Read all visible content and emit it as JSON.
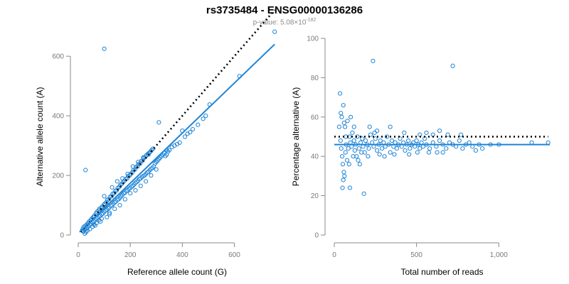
{
  "header": {
    "title": "rs3735484 - ENSG00000136286",
    "pvalue_prefix": "p-value: 5.08×10",
    "pvalue_exponent": "-182"
  },
  "colors": {
    "points": "#1f84d6",
    "fit_line": "#1f84d6",
    "reference_line": "#000000",
    "axis": "#8a8a8a"
  },
  "chart_data": [
    {
      "type": "scatter",
      "title": "",
      "xlabel": "Reference allele count (G)",
      "ylabel": "Alternative allele count (A)",
      "xlim": [
        0,
        760
      ],
      "ylim": [
        0,
        660
      ],
      "xticks": [
        0,
        200,
        400,
        600
      ],
      "xtick_labels": [
        "0",
        "200",
        "400",
        "600"
      ],
      "yticks": [
        0,
        200,
        400,
        600
      ],
      "ytick_labels": [
        "0",
        "200",
        "400",
        "600"
      ],
      "grid": false,
      "lines": [
        {
          "style": "dotted",
          "color": "#000000",
          "x": [
            10,
            755
          ],
          "y": [
            10,
            755
          ]
        },
        {
          "style": "solid",
          "color": "#1f84d6",
          "x": [
            5,
            755
          ],
          "y": [
            10,
            640
          ]
        }
      ],
      "points": [
        [
          100,
          625
        ],
        [
          28,
          218
        ],
        [
          755,
          682
        ],
        [
          620,
          533
        ],
        [
          310,
          378
        ],
        [
          505,
          438
        ],
        [
          400,
          350
        ],
        [
          340,
          285
        ],
        [
          15,
          15
        ],
        [
          18,
          22
        ],
        [
          20,
          12
        ],
        [
          22,
          28
        ],
        [
          25,
          18
        ],
        [
          28,
          30
        ],
        [
          30,
          22
        ],
        [
          32,
          35
        ],
        [
          35,
          25
        ],
        [
          38,
          40
        ],
        [
          40,
          30
        ],
        [
          42,
          45
        ],
        [
          45,
          35
        ],
        [
          48,
          50
        ],
        [
          50,
          38
        ],
        [
          52,
          55
        ],
        [
          55,
          42
        ],
        [
          58,
          60
        ],
        [
          60,
          45
        ],
        [
          62,
          65
        ],
        [
          65,
          50
        ],
        [
          68,
          72
        ],
        [
          70,
          55
        ],
        [
          72,
          78
        ],
        [
          75,
          58
        ],
        [
          78,
          82
        ],
        [
          80,
          62
        ],
        [
          82,
          88
        ],
        [
          85,
          65
        ],
        [
          88,
          90
        ],
        [
          90,
          70
        ],
        [
          92,
          95
        ],
        [
          95,
          72
        ],
        [
          98,
          100
        ],
        [
          100,
          78
        ],
        [
          102,
          105
        ],
        [
          105,
          82
        ],
        [
          108,
          110
        ],
        [
          110,
          85
        ],
        [
          112,
          118
        ],
        [
          115,
          90
        ],
        [
          118,
          120
        ],
        [
          120,
          92
        ],
        [
          122,
          128
        ],
        [
          125,
          98
        ],
        [
          128,
          130
        ],
        [
          130,
          100
        ],
        [
          132,
          138
        ],
        [
          135,
          105
        ],
        [
          138,
          140
        ],
        [
          140,
          110
        ],
        [
          142,
          148
        ],
        [
          145,
          112
        ],
        [
          148,
          150
        ],
        [
          150,
          118
        ],
        [
          152,
          158
        ],
        [
          155,
          120
        ],
        [
          158,
          162
        ],
        [
          160,
          125
        ],
        [
          162,
          168
        ],
        [
          165,
          130
        ],
        [
          168,
          172
        ],
        [
          170,
          135
        ],
        [
          172,
          178
        ],
        [
          175,
          140
        ],
        [
          178,
          182
        ],
        [
          180,
          142
        ],
        [
          182,
          188
        ],
        [
          185,
          148
        ],
        [
          188,
          190
        ],
        [
          190,
          150
        ],
        [
          192,
          198
        ],
        [
          195,
          155
        ],
        [
          198,
          200
        ],
        [
          200,
          158
        ],
        [
          202,
          205
        ],
        [
          205,
          162
        ],
        [
          208,
          210
        ],
        [
          210,
          165
        ],
        [
          212,
          218
        ],
        [
          215,
          170
        ],
        [
          218,
          220
        ],
        [
          220,
          175
        ],
        [
          222,
          228
        ],
        [
          225,
          178
        ],
        [
          228,
          230
        ],
        [
          230,
          182
        ],
        [
          232,
          238
        ],
        [
          235,
          188
        ],
        [
          238,
          240
        ],
        [
          240,
          190
        ],
        [
          242,
          248
        ],
        [
          245,
          195
        ],
        [
          248,
          250
        ],
        [
          250,
          198
        ],
        [
          252,
          258
        ],
        [
          255,
          200
        ],
        [
          258,
          262
        ],
        [
          260,
          205
        ],
        [
          262,
          268
        ],
        [
          265,
          210
        ],
        [
          268,
          272
        ],
        [
          270,
          212
        ],
        [
          272,
          275
        ],
        [
          275,
          218
        ],
        [
          278,
          280
        ],
        [
          280,
          222
        ],
        [
          282,
          285
        ],
        [
          285,
          225
        ],
        [
          288,
          290
        ],
        [
          290,
          230
        ],
        [
          295,
          240
        ],
        [
          300,
          245
        ],
        [
          305,
          250
        ],
        [
          310,
          255
        ],
        [
          315,
          260
        ],
        [
          320,
          265
        ],
        [
          325,
          270
        ],
        [
          330,
          275
        ],
        [
          335,
          265
        ],
        [
          340,
          270
        ],
        [
          345,
          280
        ],
        [
          350,
          285
        ],
        [
          360,
          295
        ],
        [
          370,
          300
        ],
        [
          380,
          305
        ],
        [
          390,
          310
        ],
        [
          410,
          330
        ],
        [
          420,
          340
        ],
        [
          430,
          345
        ],
        [
          440,
          355
        ],
        [
          460,
          370
        ],
        [
          480,
          390
        ],
        [
          490,
          400
        ],
        [
          60,
          35
        ],
        [
          80,
          50
        ],
        [
          90,
          55
        ],
        [
          120,
          75
        ],
        [
          140,
          88
        ],
        [
          160,
          100
        ],
        [
          180,
          120
        ],
        [
          200,
          140
        ],
        [
          220,
          150
        ],
        [
          240,
          165
        ],
        [
          260,
          180
        ],
        [
          280,
          200
        ],
        [
          300,
          220
        ],
        [
          100,
          130
        ],
        [
          130,
          160
        ],
        [
          150,
          180
        ],
        [
          170,
          190
        ],
        [
          190,
          205
        ],
        [
          210,
          230
        ],
        [
          230,
          245
        ],
        [
          250,
          260
        ],
        [
          270,
          270
        ],
        [
          120,
          70
        ],
        [
          70,
          40
        ],
        [
          45,
          20
        ],
        [
          55,
          28
        ],
        [
          65,
          32
        ],
        [
          85,
          45
        ],
        [
          110,
          60
        ],
        [
          30,
          10
        ],
        [
          35,
          15
        ],
        [
          25,
          5
        ]
      ]
    },
    {
      "type": "scatter",
      "title": "",
      "xlabel": "Total number of reads",
      "ylabel": "Percentage alternative (A)",
      "xlim": [
        0,
        1310
      ],
      "ylim": [
        0,
        100
      ],
      "xticks": [
        0,
        500,
        1000
      ],
      "xtick_labels": [
        "0",
        "500",
        "1,000"
      ],
      "yticks": [
        0,
        20,
        40,
        60,
        80,
        100
      ],
      "ytick_labels": [
        "0",
        "20",
        "40",
        "60",
        "80",
        "100"
      ],
      "grid": false,
      "lines": [
        {
          "style": "dotted",
          "color": "#000000",
          "x": [
            0,
            1300
          ],
          "y": [
            50,
            50
          ]
        },
        {
          "style": "solid",
          "color": "#1f84d6",
          "x": [
            0,
            1310
          ],
          "y": [
            46,
            46
          ]
        }
      ],
      "points": [
        [
          235,
          88.5
        ],
        [
          720,
          86
        ],
        [
          180,
          21
        ],
        [
          95,
          24
        ],
        [
          55,
          28
        ],
        [
          50,
          24
        ],
        [
          90,
          36
        ],
        [
          115,
          40
        ],
        [
          35,
          72
        ],
        [
          40,
          62
        ],
        [
          45,
          60
        ],
        [
          55,
          66
        ],
        [
          60,
          57
        ],
        [
          65,
          55
        ],
        [
          70,
          50
        ],
        [
          80,
          58
        ],
        [
          30,
          55
        ],
        [
          38,
          48
        ],
        [
          42,
          44
        ],
        [
          48,
          40
        ],
        [
          52,
          36
        ],
        [
          58,
          32
        ],
        [
          62,
          30
        ],
        [
          68,
          42
        ],
        [
          72,
          46
        ],
        [
          78,
          38
        ],
        [
          85,
          44
        ],
        [
          92,
          50
        ],
        [
          98,
          47
        ],
        [
          105,
          45
        ],
        [
          110,
          52
        ],
        [
          120,
          48
        ],
        [
          125,
          43
        ],
        [
          130,
          46
        ],
        [
          140,
          50
        ],
        [
          145,
          38
        ],
        [
          150,
          44
        ],
        [
          160,
          47
        ],
        [
          170,
          49
        ],
        [
          175,
          45
        ],
        [
          185,
          42
        ],
        [
          190,
          48
        ],
        [
          200,
          46
        ],
        [
          210,
          44
        ],
        [
          220,
          51
        ],
        [
          230,
          47
        ],
        [
          240,
          45
        ],
        [
          250,
          49
        ],
        [
          260,
          43
        ],
        [
          270,
          46
        ],
        [
          280,
          48
        ],
        [
          290,
          44
        ],
        [
          300,
          47
        ],
        [
          310,
          45
        ],
        [
          320,
          50
        ],
        [
          330,
          46
        ],
        [
          340,
          42
        ],
        [
          350,
          48
        ],
        [
          360,
          45
        ],
        [
          370,
          47
        ],
        [
          380,
          44
        ],
        [
          390,
          46
        ],
        [
          400,
          49
        ],
        [
          410,
          45
        ],
        [
          420,
          47
        ],
        [
          430,
          43
        ],
        [
          440,
          46
        ],
        [
          450,
          48
        ],
        [
          460,
          44
        ],
        [
          470,
          46
        ],
        [
          480,
          47
        ],
        [
          490,
          45
        ],
        [
          500,
          48
        ],
        [
          510,
          46
        ],
        [
          520,
          44
        ],
        [
          530,
          47
        ],
        [
          540,
          45
        ],
        [
          550,
          49
        ],
        [
          560,
          46
        ],
        [
          580,
          44
        ],
        [
          600,
          47
        ],
        [
          620,
          45
        ],
        [
          640,
          48
        ],
        [
          660,
          46
        ],
        [
          680,
          44
        ],
        [
          700,
          47
        ],
        [
          720,
          46
        ],
        [
          740,
          45
        ],
        [
          760,
          48
        ],
        [
          780,
          44
        ],
        [
          800,
          46
        ],
        [
          820,
          47
        ],
        [
          840,
          45
        ],
        [
          860,
          43
        ],
        [
          880,
          46
        ],
        [
          900,
          44
        ],
        [
          950,
          46
        ],
        [
          1000,
          46
        ],
        [
          1200,
          47
        ],
        [
          1300,
          47
        ],
        [
          640,
          53
        ],
        [
          560,
          52
        ],
        [
          340,
          55
        ],
        [
          260,
          53
        ],
        [
          120,
          55
        ],
        [
          100,
          60
        ],
        [
          135,
          40
        ],
        [
          155,
          36
        ],
        [
          165,
          42
        ],
        [
          205,
          40
        ],
        [
          215,
          55
        ],
        [
          245,
          52
        ],
        [
          275,
          41
        ],
        [
          305,
          40
        ],
        [
          365,
          41
        ],
        [
          425,
          52
        ],
        [
          455,
          41
        ],
        [
          505,
          42
        ],
        [
          575,
          42
        ],
        [
          625,
          42
        ],
        [
          690,
          51
        ],
        [
          770,
          51
        ],
        [
          660,
          42
        ],
        [
          600,
          51
        ],
        [
          520,
          51
        ]
      ]
    }
  ]
}
